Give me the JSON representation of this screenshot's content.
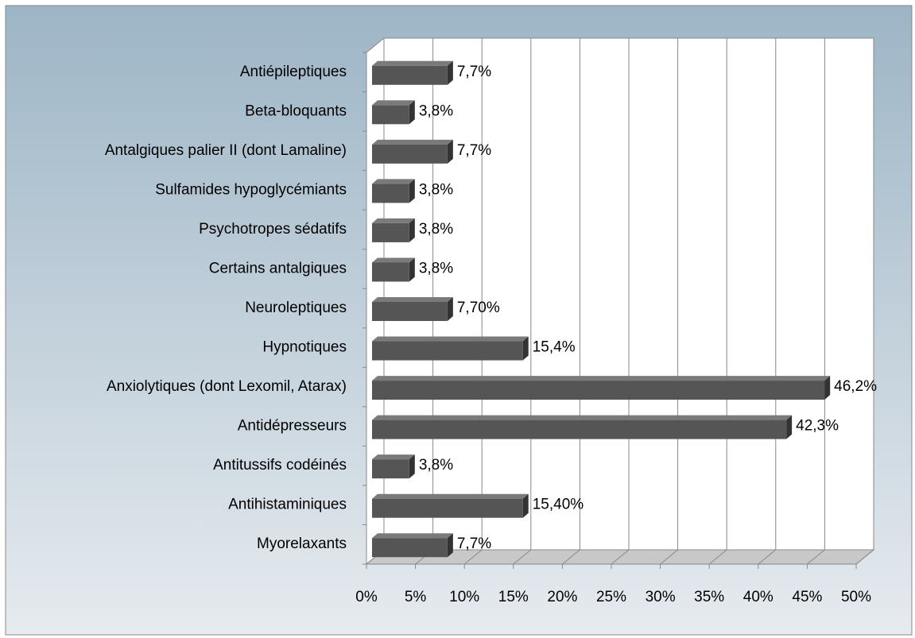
{
  "chart_data": {
    "type": "bar",
    "orientation": "horizontal",
    "categories": [
      "Antiépileptiques",
      "Beta-bloquants",
      "Antalgiques palier II (dont Lamaline)",
      "Sulfamides hypoglycémiants",
      "Psychotropes sédatifs",
      "Certains antalgiques",
      "Neuroleptiques",
      "Hypnotiques",
      "Anxiolytiques (dont Lexomil, Atarax)",
      "Antidépresseurs",
      "Antitussifs codéinés",
      "Antihistaminiques",
      "Myorelaxants"
    ],
    "values": [
      7.7,
      3.8,
      7.7,
      3.8,
      3.8,
      3.8,
      7.7,
      15.4,
      46.2,
      42.3,
      3.8,
      15.4,
      7.7
    ],
    "value_labels": [
      "7,7%",
      "3,8%",
      "7,7%",
      "3,8%",
      "3,8%",
      "3,8%",
      "7,70%",
      "15,4%",
      "46,2%",
      "42,3%",
      "3,8%",
      "15,40%",
      "7,7%"
    ],
    "color": "#555555",
    "xlim": [
      0,
      50
    ],
    "xticks": [
      {
        "value": 0,
        "label": "0%"
      },
      {
        "value": 5,
        "label": "5%"
      },
      {
        "value": 10,
        "label": "10%"
      },
      {
        "value": 15,
        "label": "15%"
      },
      {
        "value": 20,
        "label": "20%"
      },
      {
        "value": 25,
        "label": "25%"
      },
      {
        "value": 30,
        "label": "30%"
      },
      {
        "value": 35,
        "label": "35%"
      },
      {
        "value": 40,
        "label": "40%"
      },
      {
        "value": 45,
        "label": "45%"
      },
      {
        "value": 50,
        "label": "50%"
      }
    ],
    "grid": true
  }
}
